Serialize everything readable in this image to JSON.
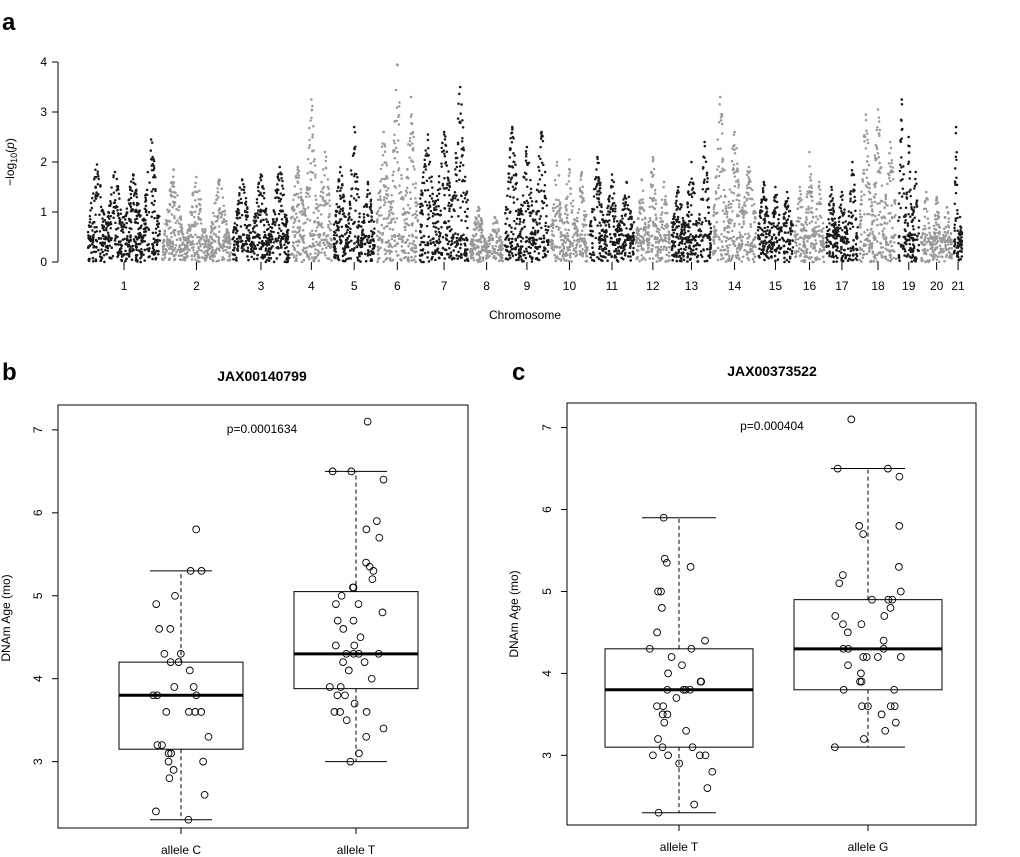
{
  "chart_data": [
    {
      "panel": "a",
      "type": "scatter",
      "title": "",
      "xlabel": "Chromosome",
      "ylabel_main": "−log",
      "ylabel_sub": "10",
      "ylabel_tail": "(",
      "ylabel_p": "p",
      "ylabel_close": ")",
      "ylim": [
        0,
        4
      ],
      "yticks": [
        "0",
        "1",
        "2",
        "3",
        "4"
      ],
      "colors": [
        "#1a1a1a",
        "#999999"
      ],
      "chromosomes": [
        {
          "label": "1",
          "peaks": [
            1.95,
            1.8,
            1.75,
            2.45
          ],
          "base": 0.9
        },
        {
          "label": "2",
          "peaks": [
            1.85,
            1.7,
            1.65
          ],
          "base": 0.5
        },
        {
          "label": "3",
          "peaks": [
            1.65,
            1.75,
            1.9
          ],
          "base": 0.7
        },
        {
          "label": "4",
          "peaks": [
            1.9,
            3.25,
            2.2
          ],
          "base": 1.1
        },
        {
          "label": "5",
          "peaks": [
            1.9,
            2.7,
            1.6
          ],
          "base": 0.8
        },
        {
          "label": "6",
          "peaks": [
            2.6,
            3.95,
            3.3
          ],
          "base": 1.2
        },
        {
          "label": "7",
          "peaks": [
            2.55,
            2.6,
            3.5
          ],
          "base": 1.3
        },
        {
          "label": "8",
          "peaks": [
            1.1,
            0.9
          ],
          "base": 0.4
        },
        {
          "label": "9",
          "peaks": [
            2.7,
            2.3,
            2.6
          ],
          "base": 1.0
        },
        {
          "label": "10",
          "peaks": [
            2.0,
            2.05,
            1.8
          ],
          "base": 0.8
        },
        {
          "label": "11",
          "peaks": [
            2.1,
            1.75,
            1.6
          ],
          "base": 0.8
        },
        {
          "label": "12",
          "peaks": [
            1.65,
            2.1,
            1.6
          ],
          "base": 0.6
        },
        {
          "label": "13",
          "peaks": [
            1.5,
            2.0,
            2.4
          ],
          "base": 0.8
        },
        {
          "label": "14",
          "peaks": [
            3.3,
            2.6,
            1.9
          ],
          "base": 1.1
        },
        {
          "label": "15",
          "peaks": [
            1.6,
            1.5,
            1.4
          ],
          "base": 0.8
        },
        {
          "label": "16",
          "peaks": [
            1.5,
            2.2,
            1.6
          ],
          "base": 0.7
        },
        {
          "label": "17",
          "peaks": [
            1.5,
            1.4,
            2.0
          ],
          "base": 0.7
        },
        {
          "label": "18",
          "peaks": [
            2.95,
            3.05,
            2.4
          ],
          "base": 1.2
        },
        {
          "label": "19",
          "peaks": [
            3.25,
            2.5,
            1.8
          ],
          "base": 1.0
        },
        {
          "label": "20",
          "peaks": [
            1.4,
            1.3,
            1.1
          ],
          "base": 0.5
        },
        {
          "label": "21",
          "peaks": [
            2.7,
            0.9
          ],
          "base": 0.6
        }
      ]
    },
    {
      "panel": "b",
      "type": "box",
      "title": "JAX00140799",
      "ylabel": "DNAm Age (mo)",
      "ylim": [
        2.2,
        7.3
      ],
      "yticks": [
        "3",
        "4",
        "5",
        "6",
        "7"
      ],
      "annotation": "p=0.0001634",
      "groups": [
        {
          "label": "allele C",
          "whisker_low": 2.3,
          "q1": 3.15,
          "median": 3.8,
          "q3": 4.2,
          "whisker_high": 5.3,
          "points": [
            5.8,
            5.3,
            5.3,
            5.0,
            4.9,
            4.6,
            4.6,
            4.3,
            4.3,
            4.2,
            4.2,
            4.1,
            3.9,
            3.9,
            3.8,
            3.8,
            3.8,
            3.6,
            3.6,
            3.6,
            3.6,
            3.3,
            3.2,
            3.2,
            3.1,
            3.1,
            3.0,
            3.0,
            2.9,
            2.8,
            2.6,
            2.4,
            2.3
          ]
        },
        {
          "label": "allele T",
          "whisker_low": 3.0,
          "q1": 3.88,
          "median": 4.3,
          "q3": 5.05,
          "whisker_high": 6.5,
          "points": [
            7.1,
            6.5,
            6.5,
            6.4,
            5.9,
            5.8,
            5.7,
            5.4,
            5.35,
            5.3,
            5.2,
            5.1,
            5.1,
            5.0,
            4.9,
            4.9,
            4.8,
            4.7,
            4.7,
            4.6,
            4.5,
            4.4,
            4.4,
            4.3,
            4.3,
            4.3,
            4.3,
            4.2,
            4.2,
            4.1,
            4.0,
            3.9,
            3.9,
            3.8,
            3.8,
            3.7,
            3.6,
            3.6,
            3.6,
            3.5,
            3.4,
            3.3,
            3.1,
            3.0
          ]
        }
      ]
    },
    {
      "panel": "c",
      "type": "box",
      "title": "JAX00373522",
      "ylabel": "DNAm Age (mo)",
      "ylim": [
        2.15,
        7.3
      ],
      "yticks": [
        "3",
        "4",
        "5",
        "6",
        "7"
      ],
      "annotation": "p=0.000404",
      "groups": [
        {
          "label": "allele T",
          "whisker_low": 2.3,
          "q1": 3.1,
          "median": 3.8,
          "q3": 4.3,
          "whisker_high": 5.9,
          "points": [
            5.9,
            5.4,
            5.35,
            5.3,
            5.0,
            5.0,
            4.8,
            4.5,
            4.4,
            4.3,
            4.3,
            4.2,
            4.1,
            4.0,
            3.9,
            3.9,
            3.8,
            3.8,
            3.8,
            3.8,
            3.7,
            3.6,
            3.6,
            3.5,
            3.5,
            3.4,
            3.3,
            3.2,
            3.1,
            3.1,
            3.0,
            3.0,
            3.0,
            3.0,
            2.9,
            2.8,
            2.6,
            2.4,
            2.3
          ]
        },
        {
          "label": "allele G",
          "whisker_low": 3.1,
          "q1": 3.8,
          "median": 4.3,
          "q3": 4.9,
          "whisker_high": 6.5,
          "points": [
            7.1,
            6.5,
            6.5,
            6.4,
            5.8,
            5.8,
            5.7,
            5.3,
            5.2,
            5.1,
            5.0,
            4.9,
            4.9,
            4.9,
            4.8,
            4.7,
            4.7,
            4.6,
            4.6,
            4.5,
            4.4,
            4.3,
            4.3,
            4.3,
            4.2,
            4.2,
            4.2,
            4.2,
            4.1,
            4.0,
            3.9,
            3.9,
            3.8,
            3.8,
            3.6,
            3.6,
            3.6,
            3.6,
            3.5,
            3.4,
            3.3,
            3.2,
            3.1
          ]
        }
      ]
    }
  ]
}
